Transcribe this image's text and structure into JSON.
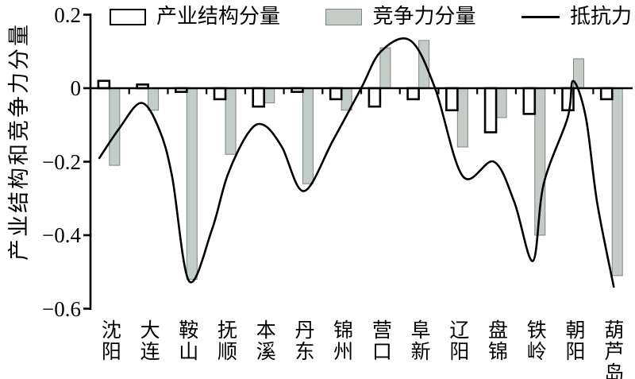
{
  "chart_data": {
    "type": "bar+line",
    "title": "",
    "ylabel": "产业结构和竞争力分量",
    "xlabel": "",
    "ylim": [
      -0.6,
      0.2
    ],
    "yticks": [
      0.2,
      0,
      -0.2,
      -0.4,
      -0.6
    ],
    "ytick_labels": [
      "0.2",
      "0",
      "−0.2",
      "−0.4",
      "−0.6"
    ],
    "grid": false,
    "legend_position": "top",
    "categories": [
      "沈阳",
      "大连",
      "鞍山",
      "抚顺",
      "本溪",
      "丹东",
      "锦州",
      "营口",
      "阜新",
      "辽阳",
      "盘锦",
      "铁岭",
      "朝阳",
      "葫芦岛"
    ],
    "series": [
      {
        "name": "产业结构分量",
        "type": "bar",
        "style": "open-white-black-border",
        "values": [
          0.02,
          0.01,
          -0.01,
          -0.03,
          -0.05,
          -0.01,
          -0.03,
          -0.05,
          -0.03,
          -0.06,
          -0.12,
          -0.07,
          -0.06,
          -0.03
        ]
      },
      {
        "name": "竞争力分量",
        "type": "bar",
        "style": "filled-gray",
        "values": [
          -0.21,
          -0.06,
          -0.52,
          -0.18,
          -0.04,
          -0.26,
          -0.06,
          0.11,
          0.13,
          -0.16,
          -0.08,
          -0.4,
          0.08,
          -0.51
        ]
      },
      {
        "name": "抵抗力",
        "type": "line",
        "values": [
          -0.19,
          -0.04,
          -0.53,
          -0.25,
          -0.1,
          -0.28,
          -0.08,
          0.1,
          0.12,
          -0.24,
          -0.2,
          -0.47,
          0.02,
          -0.54
        ],
        "smooth_path_points": [
          [
            -0.27,
            -0.19
          ],
          [
            0.24,
            -0.11
          ],
          [
            0.81,
            -0.04
          ],
          [
            1.27,
            -0.11
          ],
          [
            1.61,
            -0.24
          ],
          [
            2.05,
            -0.525
          ],
          [
            2.64,
            -0.385
          ],
          [
            3.05,
            -0.235
          ],
          [
            3.59,
            -0.12
          ],
          [
            3.98,
            -0.1
          ],
          [
            4.45,
            -0.16
          ],
          [
            5.02,
            -0.28
          ],
          [
            5.78,
            -0.14
          ],
          [
            6.5,
            0
          ],
          [
            7.01,
            0.1
          ],
          [
            7.77,
            0.13
          ],
          [
            8.41,
            0
          ],
          [
            9.13,
            -0.24
          ],
          [
            9.93,
            -0.2
          ],
          [
            10.46,
            -0.31
          ],
          [
            10.94,
            -0.47
          ],
          [
            11.22,
            -0.26
          ],
          [
            11.84,
            -0.08
          ],
          [
            11.98,
            0.02
          ],
          [
            12.31,
            -0.08
          ],
          [
            12.6,
            -0.31
          ],
          [
            13.03,
            -0.54
          ]
        ]
      }
    ],
    "colors": {
      "open_bar_fill": "#ffffff",
      "open_bar_border": "#000000",
      "filled_bar_fill": "#c3ccc7",
      "filled_bar_border": "#7d8781",
      "line": "#000000",
      "axis": "#000000"
    }
  },
  "legend": {
    "entries": [
      {
        "label": "产业结构分量",
        "swatch": "open-bar-swatch"
      },
      {
        "label": "竞争力分量",
        "swatch": "filled-bar-swatch"
      },
      {
        "label": "抵抗力",
        "swatch": "line-swatch"
      }
    ]
  }
}
